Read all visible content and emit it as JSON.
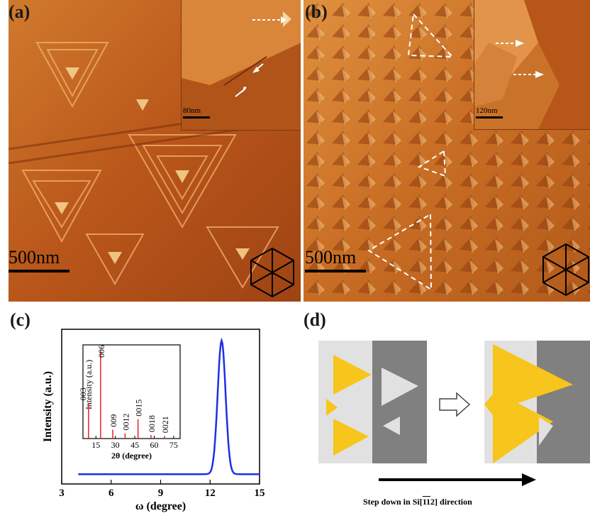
{
  "panels": {
    "a": {
      "label": "(a)",
      "scale_bar": "500nm",
      "inset_scale": "80nm"
    },
    "b": {
      "label": "(b)",
      "scale_bar": "500nm",
      "inset_scale": "120nm"
    },
    "c": {
      "label": "(c)"
    },
    "d": {
      "label": "(d)",
      "caption_prefix": "Step down in Si[",
      "caption_miller": "1",
      "caption_miller2": "1",
      "caption_miller3": "2",
      "caption_suffix": "] direction"
    }
  },
  "chart_data": [
    {
      "type": "line",
      "xlabel": "ω (degree)",
      "ylabel": "Intensity (a.u.)",
      "xlim": [
        3,
        15
      ],
      "xticks": [
        "3",
        "6",
        "9",
        "12",
        "15"
      ],
      "series": [
        {
          "color": "#1f2ee6",
          "x": [
            4,
            11.5,
            12.2,
            12.5,
            12.7,
            12.9,
            13.2,
            13.6,
            15
          ],
          "y": [
            0.02,
            0.02,
            0.06,
            0.55,
            1.0,
            0.55,
            0.06,
            0.02,
            0.02
          ]
        }
      ]
    },
    {
      "type": "bar",
      "xlabel": "2θ (degree)",
      "ylabel": "Intensity (a.u.)",
      "xlim": [
        5,
        80
      ],
      "xticks": [
        "15",
        "30",
        "45",
        "60",
        "75"
      ],
      "color": "#e8202a",
      "peaks": [
        {
          "x": 9.3,
          "y": 0.4,
          "label": "003"
        },
        {
          "x": 18.6,
          "y": 1.0,
          "label": "006"
        },
        {
          "x": 28.0,
          "y": 0.1,
          "label": "009"
        },
        {
          "x": 37.5,
          "y": 0.06,
          "label": "0012"
        },
        {
          "x": 47.5,
          "y": 0.22,
          "label": "0015"
        },
        {
          "x": 57.5,
          "y": 0.04,
          "label": "0018"
        },
        {
          "x": 68.0,
          "y": 0.03,
          "label": "0021"
        }
      ]
    }
  ],
  "colors": {
    "afm_dark": "#8a3a10",
    "afm_mid": "#c9661f",
    "afm_light": "#f0a65a",
    "yellow": "#f7c51b",
    "light_gray": "#e1e1e1",
    "dark_gray": "#808080"
  }
}
